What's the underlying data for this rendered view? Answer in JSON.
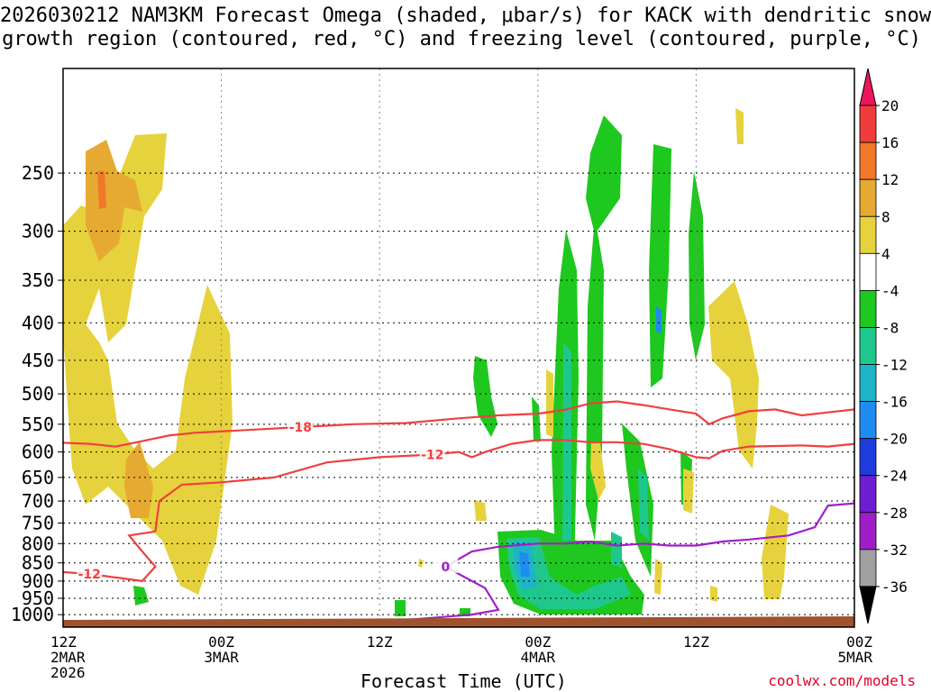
{
  "title_line1": "2026030212 NAM3KM Forecast Omega (shaded, μbar/s) for KACK with dendritic snow",
  "title_line2": "growth region (contoured, red, °C) and freezing level (contoured, purple, °C)",
  "credit": "coolwx.com/models",
  "chart_data": {
    "type": "heatmap",
    "xlabel": "Forecast Time (UTC)",
    "ylabel": "",
    "y_scale": "pressure (hPa), log, inverted",
    "ylim": [
      1040,
      180
    ],
    "xlim_hours": [
      0,
      60
    ],
    "y_ticks": [
      250,
      300,
      350,
      400,
      450,
      500,
      550,
      600,
      650,
      700,
      750,
      800,
      850,
      900,
      950,
      1000
    ],
    "x_ticks": [
      {
        "hour": 0,
        "lines": [
          "12Z",
          "2MAR",
          "2026"
        ]
      },
      {
        "hour": 12,
        "lines": [
          "00Z",
          "3MAR"
        ]
      },
      {
        "hour": 24,
        "lines": [
          "12Z"
        ]
      },
      {
        "hour": 36,
        "lines": [
          "00Z",
          "4MAR"
        ]
      },
      {
        "hour": 48,
        "lines": [
          "12Z"
        ]
      },
      {
        "hour": 60,
        "lines": [
          "00Z",
          "5MAR"
        ]
      }
    ],
    "grid": true,
    "colorbar": {
      "labels": [
        20,
        16,
        12,
        8,
        4,
        -4,
        -8,
        -12,
        -16,
        -20,
        -24,
        -28,
        -32,
        -36
      ],
      "colors": [
        "#f0145a",
        "#f03c3c",
        "#f07828",
        "#e6aa32",
        "#e6d23c",
        "#ffffff",
        "#1ec81e",
        "#1ec88c",
        "#1eb4c8",
        "#1e8cf0",
        "#1e3cdc",
        "#6e1ed2",
        "#a01ec8",
        "#a0a0a0",
        "#000000"
      ]
    },
    "contours": [
      {
        "label": "-18",
        "color": "#f04040",
        "points": [
          [
            0,
            583
          ],
          [
            2,
            585
          ],
          [
            4,
            590
          ],
          [
            6,
            580
          ],
          [
            8,
            570
          ],
          [
            10,
            565
          ],
          [
            14,
            560
          ],
          [
            18,
            555
          ],
          [
            22,
            550
          ],
          [
            26,
            548
          ],
          [
            30,
            540
          ],
          [
            33,
            535
          ],
          [
            36,
            532
          ],
          [
            38,
            526
          ],
          [
            40,
            515
          ],
          [
            42,
            512
          ],
          [
            44,
            518
          ],
          [
            46,
            525
          ],
          [
            48,
            532
          ],
          [
            49,
            550
          ],
          [
            50,
            540
          ],
          [
            52,
            528
          ],
          [
            54,
            525
          ],
          [
            56,
            535
          ],
          [
            58,
            530
          ],
          [
            60,
            525
          ]
        ]
      },
      {
        "label": "-12",
        "color": "#f04040",
        "points": [
          [
            7,
            770
          ],
          [
            7.3,
            700
          ],
          [
            9,
            665
          ],
          [
            12,
            660
          ],
          [
            16,
            650
          ],
          [
            20,
            620
          ],
          [
            24,
            610
          ],
          [
            28,
            605
          ],
          [
            30,
            600
          ],
          [
            31,
            610
          ],
          [
            32,
            600
          ],
          [
            34,
            585
          ],
          [
            36,
            578
          ],
          [
            38,
            578
          ],
          [
            40,
            582
          ],
          [
            42,
            582
          ],
          [
            44,
            585
          ],
          [
            46,
            595
          ],
          [
            48,
            610
          ],
          [
            49,
            612
          ],
          [
            50,
            598
          ],
          [
            52,
            590
          ],
          [
            56,
            588
          ],
          [
            58,
            590
          ],
          [
            60,
            585
          ]
        ]
      },
      {
        "label": "-12",
        "color": "#f04040",
        "points": [
          [
            7,
            770
          ],
          [
            5,
            780
          ],
          [
            6,
            820
          ],
          [
            7,
            860
          ],
          [
            6,
            900
          ],
          [
            4,
            890
          ],
          [
            2,
            880
          ],
          [
            0,
            875
          ]
        ]
      },
      {
        "label": "0",
        "color": "#a020c8",
        "points": [
          [
            21.5,
            1035
          ],
          [
            25,
            1020
          ],
          [
            28,
            1010
          ],
          [
            31,
            1000
          ],
          [
            33,
            985
          ],
          [
            32,
            920
          ],
          [
            30,
            880
          ],
          [
            29,
            860
          ],
          [
            30,
            840
          ],
          [
            31,
            820
          ],
          [
            33,
            808
          ],
          [
            36,
            800
          ],
          [
            38,
            800
          ],
          [
            40,
            795
          ],
          [
            42,
            805
          ],
          [
            44,
            800
          ],
          [
            46,
            805
          ],
          [
            48,
            805
          ],
          [
            50,
            795
          ],
          [
            52,
            790
          ],
          [
            55,
            780
          ],
          [
            57,
            760
          ],
          [
            58,
            710
          ],
          [
            60,
            705
          ]
        ]
      }
    ]
  }
}
